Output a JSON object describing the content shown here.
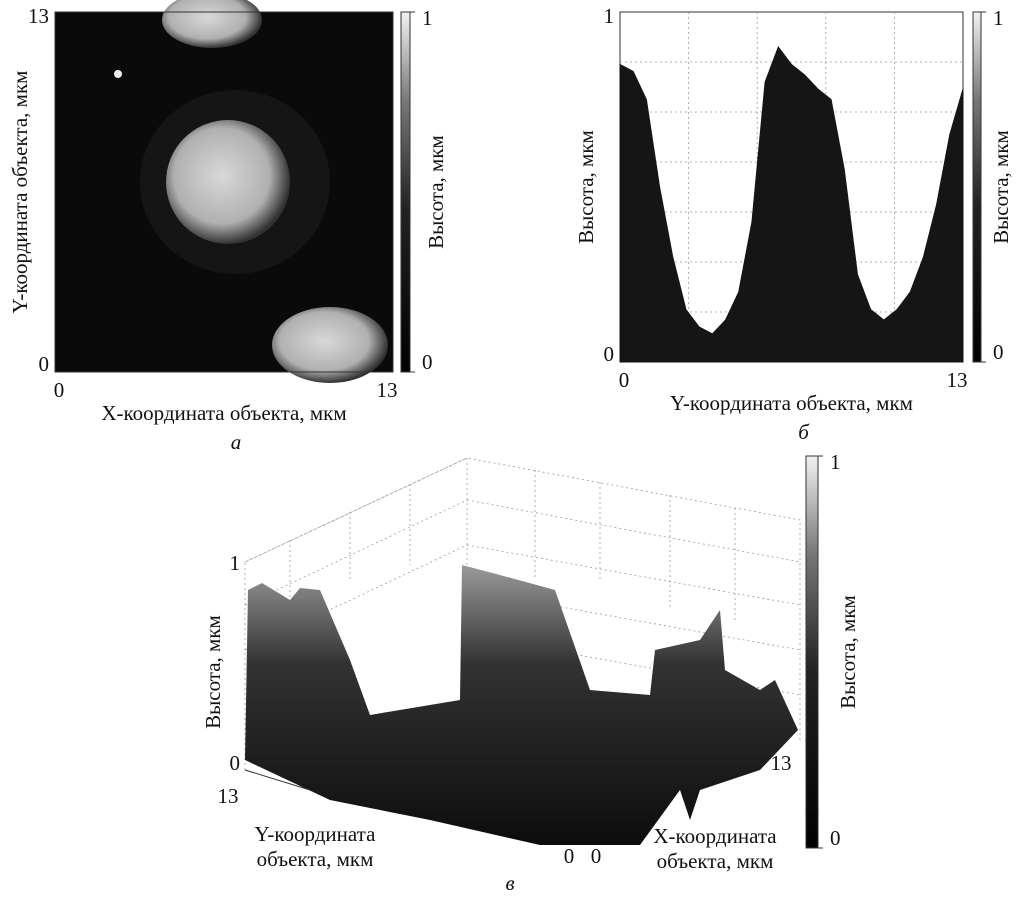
{
  "chart_data": [
    {
      "type": "heatmap",
      "panel": "а",
      "xlabel": "X-координата объекта, мкм",
      "ylabel": "Y-координата объекта, мкм",
      "xlim": [
        0,
        13
      ],
      "xticks": [
        0,
        13
      ],
      "ylim": [
        0,
        13
      ],
      "yticks": [
        0,
        13
      ],
      "colorbar_label": "Высота, мкм",
      "colorbar_lim": [
        0,
        1
      ],
      "colorbar_ticks": [
        0,
        1
      ]
    },
    {
      "type": "area",
      "panel": "б",
      "xlabel": "Y-координата объекта, мкм",
      "ylabel": "Высота, мкм",
      "xlim": [
        0,
        13
      ],
      "xticks": [
        0,
        13
      ],
      "ylim": [
        0,
        1
      ],
      "yticks": [
        0,
        1
      ],
      "grid": true,
      "color": "#151515",
      "x": [
        0,
        0.5,
        1,
        1.5,
        2,
        2.5,
        3,
        3.5,
        4,
        4.5,
        5,
        5.5,
        6,
        6.5,
        7,
        7.5,
        8,
        8.5,
        9,
        9.5,
        10,
        10.5,
        11,
        11.5,
        12,
        12.5,
        13
      ],
      "values": [
        0.85,
        0.83,
        0.75,
        0.5,
        0.3,
        0.15,
        0.1,
        0.08,
        0.12,
        0.2,
        0.4,
        0.8,
        0.9,
        0.85,
        0.82,
        0.78,
        0.75,
        0.55,
        0.25,
        0.15,
        0.12,
        0.15,
        0.2,
        0.3,
        0.45,
        0.65,
        0.78
      ],
      "colorbar_label": "Высота, мкм",
      "colorbar_lim": [
        0,
        1
      ],
      "colorbar_ticks": [
        0,
        1
      ]
    },
    {
      "type": "surface3d",
      "panel": "в",
      "xlabel": [
        "X-координата",
        "объекта, мкм"
      ],
      "ylabel": [
        "Y-координата",
        "объекта, мкм"
      ],
      "zlabel": "Высота, мкм",
      "xticks": [
        0,
        13
      ],
      "yticks": [
        13,
        0
      ],
      "zlim": [
        0,
        1
      ],
      "zticks": [
        0,
        1
      ],
      "colorbar_label": "Высота, мкм",
      "colorbar_lim": [
        0,
        1
      ],
      "colorbar_ticks": [
        0,
        1
      ]
    }
  ]
}
